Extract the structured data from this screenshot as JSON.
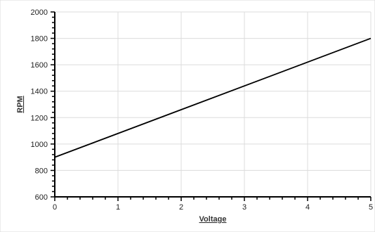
{
  "chart_data": {
    "type": "line",
    "title": "",
    "xlabel": "Voltage",
    "ylabel": "RPM",
    "xlim": [
      0,
      5
    ],
    "ylim": [
      600,
      2000
    ],
    "x_ticks": [
      0,
      1,
      2,
      3,
      4,
      5
    ],
    "y_ticks": [
      600,
      800,
      1000,
      1200,
      1400,
      1600,
      1800,
      2000
    ],
    "x_tick_labels": [
      "0",
      "1",
      "2",
      "3",
      "4",
      "5"
    ],
    "y_tick_labels": [
      "600",
      "800",
      "1000",
      "1200",
      "1400",
      "1600",
      "1800",
      "2000"
    ],
    "grid": true,
    "legend": "none",
    "series": [
      {
        "x": [
          0,
          5
        ],
        "y": [
          900,
          1800
        ],
        "color": "#000000"
      }
    ]
  }
}
